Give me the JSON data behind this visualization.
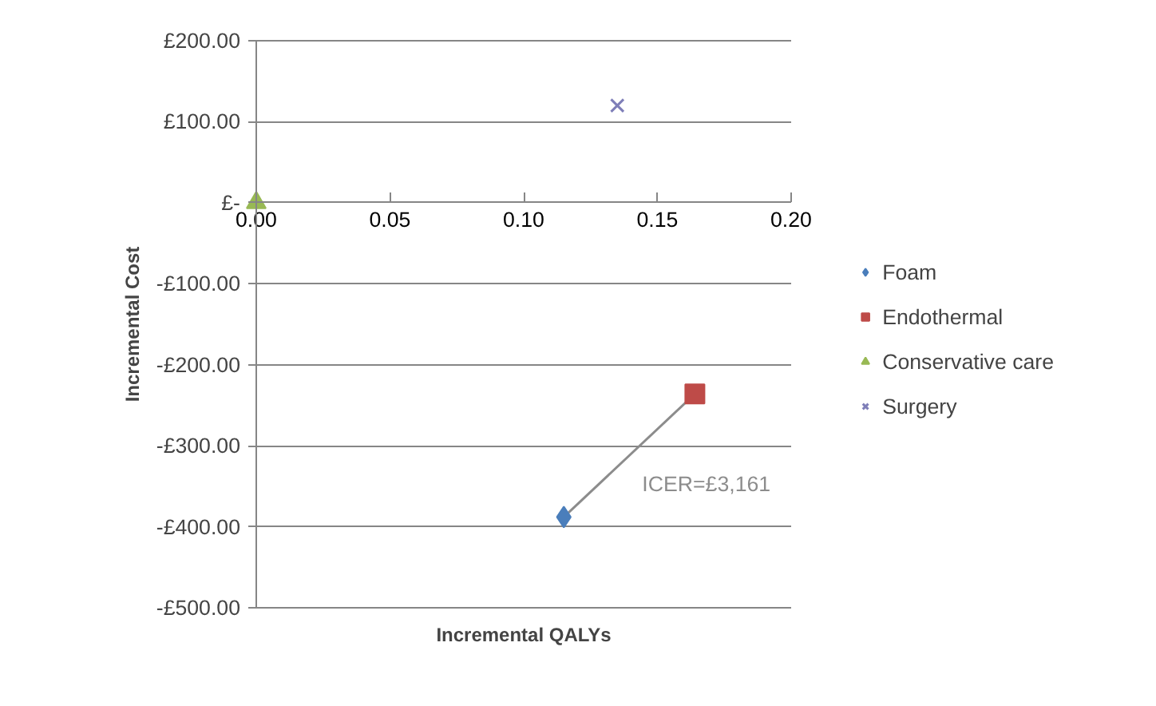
{
  "chart_data": {
    "type": "scatter",
    "xlabel": "Incremental QALYs",
    "ylabel": "Incremental Cost",
    "xlim": [
      0,
      0.2
    ],
    "xticks": [
      {
        "value": 0,
        "label": "0.00"
      },
      {
        "value": 0.05,
        "label": "0.05"
      },
      {
        "value": 0.1,
        "label": "0.10"
      },
      {
        "value": 0.15,
        "label": "0.15"
      },
      {
        "value": 0.2,
        "label": "0.20"
      }
    ],
    "ylim": [
      -500,
      200
    ],
    "yticks": [
      {
        "value": 200,
        "label": "£200.00"
      },
      {
        "value": 100,
        "label": "£100.00"
      },
      {
        "value": 0,
        "label": "£-"
      },
      {
        "value": -100,
        "label": "-£100.00"
      },
      {
        "value": -200,
        "label": "-£200.00"
      },
      {
        "value": -300,
        "label": "-£300.00"
      },
      {
        "value": -400,
        "label": "-£400.00"
      },
      {
        "value": -500,
        "label": "-£500.00"
      }
    ],
    "grid": "y",
    "legend": "right",
    "series": [
      {
        "type": "line",
        "color": "#8c8c8c",
        "x": [
          0.115,
          0.164
        ],
        "values": [
          -388,
          -236
        ],
        "marker": "none"
      },
      {
        "name": "Foam",
        "color": "#4a7ebb",
        "x": [
          0.115
        ],
        "values": [
          -388
        ],
        "marker": "diamond"
      },
      {
        "name": "Endothermal",
        "color": "#be4b48",
        "x": [
          0.164
        ],
        "values": [
          -236
        ],
        "marker": "square"
      },
      {
        "name": "Conservative care",
        "color": "#98b954",
        "x": [
          0
        ],
        "values": [
          0
        ],
        "marker": "triangle"
      },
      {
        "name": "Surgery",
        "color": "#7e7eb8",
        "x": [
          0.135
        ],
        "values": [
          120
        ],
        "marker": "cross"
      }
    ],
    "annotations": [
      "ICER=£3,161"
    ]
  }
}
